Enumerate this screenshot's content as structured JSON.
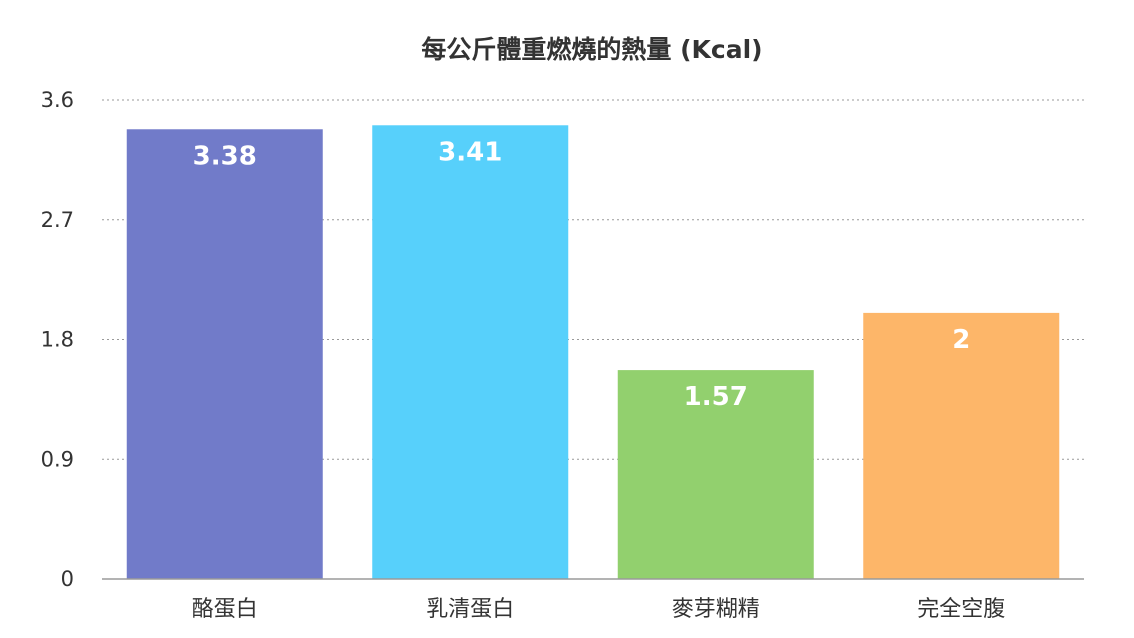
{
  "chart_data": {
    "type": "bar",
    "title": "每公斤體重燃燒的熱量 (Kcal)",
    "xlabel": "",
    "ylabel": "",
    "categories": [
      "酪蛋白",
      "乳清蛋白",
      "麥芽糊精",
      "完全空腹"
    ],
    "values": [
      3.38,
      3.41,
      1.57,
      2
    ],
    "value_labels": [
      "3.38",
      "3.41",
      "1.57",
      "2"
    ],
    "colors": [
      "#717bc9",
      "#57d0fb",
      "#92d06e",
      "#fdb669"
    ],
    "ylim": [
      0,
      3.6
    ],
    "yticks": [
      0,
      0.9,
      1.8,
      2.7,
      3.6
    ],
    "ytick_labels": [
      "0",
      "0.9",
      "1.8",
      "2.7",
      "3.6"
    ],
    "grid": true,
    "legend": "none"
  }
}
